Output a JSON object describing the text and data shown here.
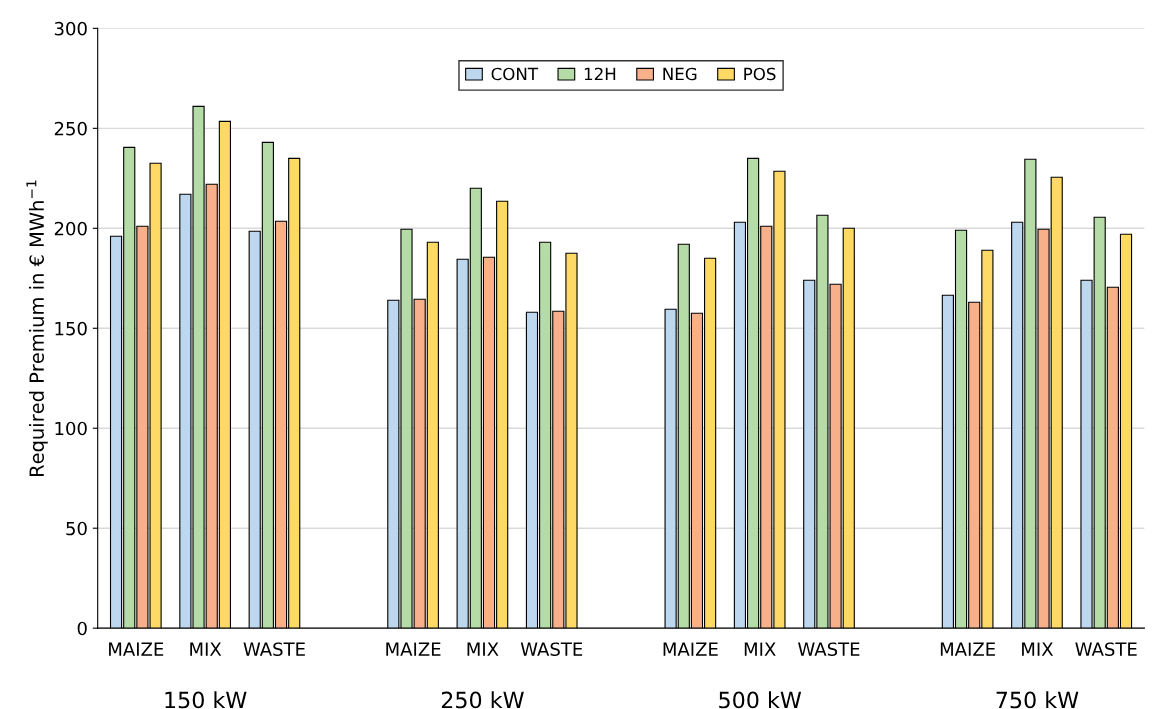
{
  "chart_data": {
    "type": "bar",
    "categories": [
      "MAIZE",
      "MIX",
      "WASTE",
      null,
      "MAIZE",
      "MIX",
      "WASTE",
      null,
      "MAIZE",
      "MIX",
      "WASTE",
      null,
      "MAIZE",
      "MIX",
      "WASTE"
    ],
    "ylabel": "Required Premium in € MWh$^{−1}$",
    "series": [
      {
        "name": "CONT",
        "color": "#bdd7ee",
        "values": [
          196,
          217,
          198.5,
          null,
          164,
          184.5,
          158,
          null,
          159.5,
          203,
          174,
          null,
          166.5,
          203,
          174
        ]
      },
      {
        "name": "12H",
        "color": "#b5dba6",
        "values": [
          240.5,
          261,
          243,
          null,
          199.5,
          220,
          193,
          null,
          192,
          235,
          206.5,
          null,
          199,
          234.5,
          205.5
        ]
      },
      {
        "name": "NEG",
        "color": "#f8b08a",
        "values": [
          201,
          222,
          203.5,
          null,
          164.5,
          185.5,
          158.5,
          null,
          157.5,
          201,
          172,
          null,
          163,
          199.5,
          170.5
        ]
      },
      {
        "name": "POS",
        "color": "#ffd966",
        "values": [
          232.5,
          253.5,
          235,
          null,
          193,
          213.5,
          187.5,
          null,
          185,
          228.5,
          200,
          null,
          189,
          225.5,
          197
        ]
      }
    ],
    "ylim": [
      0,
      300
    ],
    "yticks": [
      0,
      50,
      100,
      150,
      200,
      250,
      300
    ],
    "grid": "y",
    "legend": "top",
    "annotations": [
      "150 kW",
      "250 kW",
      "500 kW",
      "750 kW"
    ]
  }
}
